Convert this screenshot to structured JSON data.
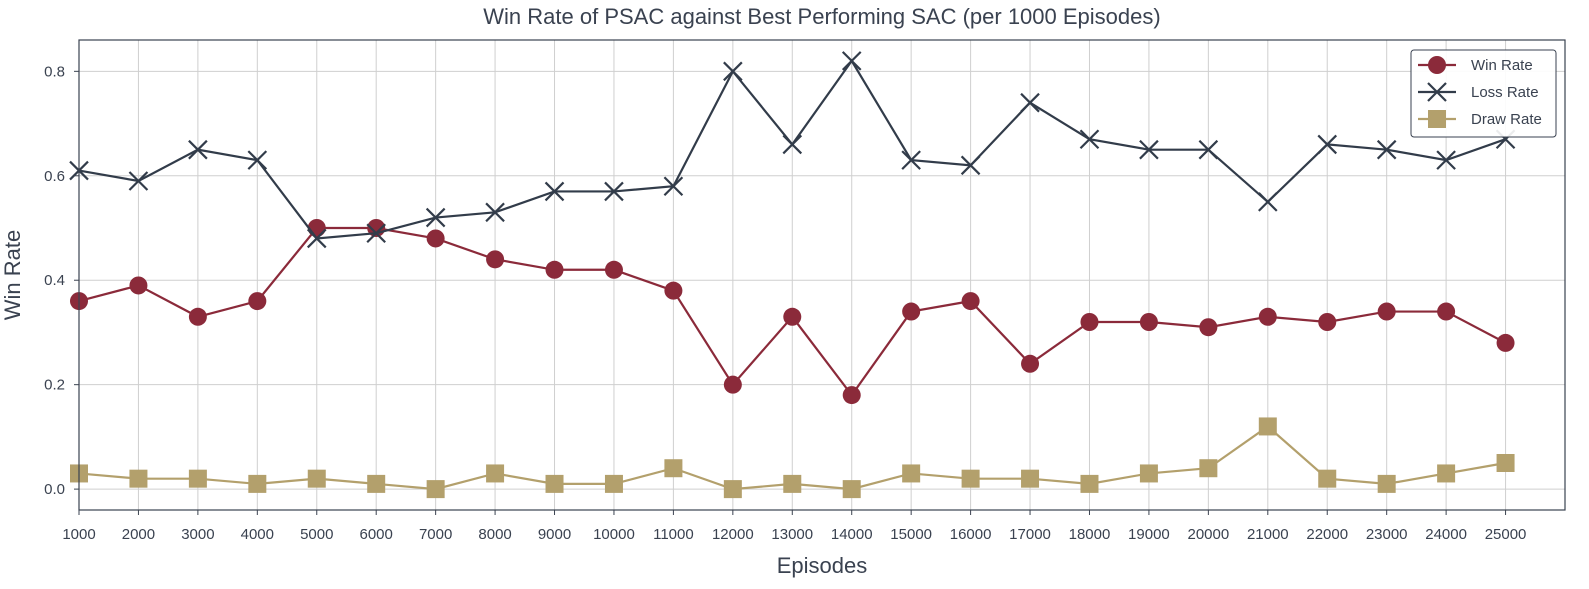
{
  "chart_data": {
    "type": "line",
    "title": "Win Rate of PSAC against Best Performing SAC (per 1000 Episodes)",
    "xlabel": "Episodes",
    "ylabel": "Win Rate",
    "x": [
      1000,
      2000,
      3000,
      4000,
      5000,
      6000,
      7000,
      8000,
      9000,
      10000,
      11000,
      12000,
      13000,
      14000,
      15000,
      16000,
      17000,
      18000,
      19000,
      20000,
      21000,
      22000,
      23000,
      24000,
      25000
    ],
    "xticks": [
      "1000",
      "2000",
      "3000",
      "4000",
      "5000",
      "6000",
      "7000",
      "8000",
      "9000",
      "10000",
      "11000",
      "12000",
      "13000",
      "14000",
      "15000",
      "16000",
      "17000",
      "18000",
      "19000",
      "20000",
      "21000",
      "22000",
      "23000",
      "24000",
      "25000"
    ],
    "yticks": [
      "0.0",
      "0.2",
      "0.4",
      "0.6",
      "0.8"
    ],
    "xlim": [
      1000,
      26000
    ],
    "ylim": [
      -0.04,
      0.86
    ],
    "grid": true,
    "legend_position": "top-right",
    "series": [
      {
        "name": "Win Rate",
        "marker": "circle",
        "color": "#8b2a3a",
        "values": [
          0.36,
          0.39,
          0.33,
          0.36,
          0.5,
          0.5,
          0.48,
          0.44,
          0.42,
          0.42,
          0.38,
          0.2,
          0.33,
          0.18,
          0.34,
          0.36,
          0.24,
          0.32,
          0.32,
          0.31,
          0.33,
          0.32,
          0.34,
          0.34,
          0.28
        ]
      },
      {
        "name": "Loss Rate",
        "marker": "x",
        "color": "#323c4a",
        "values": [
          0.61,
          0.59,
          0.65,
          0.63,
          0.48,
          0.49,
          0.52,
          0.53,
          0.57,
          0.57,
          0.58,
          0.8,
          0.66,
          0.82,
          0.63,
          0.62,
          0.74,
          0.67,
          0.65,
          0.65,
          0.55,
          0.66,
          0.65,
          0.63,
          0.67
        ]
      },
      {
        "name": "Draw Rate",
        "marker": "square",
        "color": "#b3a06c",
        "values": [
          0.03,
          0.02,
          0.02,
          0.01,
          0.02,
          0.01,
          0.0,
          0.03,
          0.01,
          0.01,
          0.04,
          0.0,
          0.01,
          0.0,
          0.03,
          0.02,
          0.02,
          0.01,
          0.03,
          0.04,
          0.12,
          0.02,
          0.01,
          0.03,
          0.05
        ]
      }
    ]
  }
}
